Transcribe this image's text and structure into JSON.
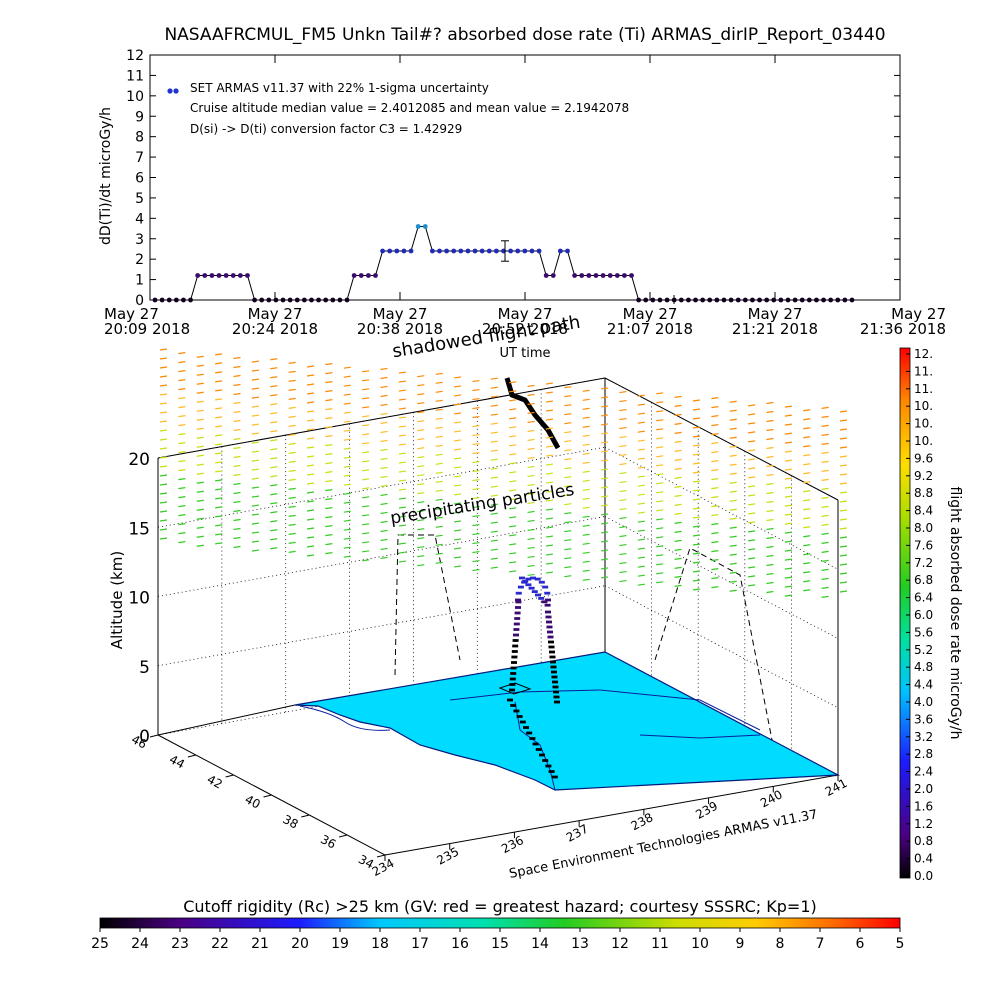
{
  "title": "NASAAFRCMUL_FM5 Unkn Tail#? absorbed dose rate (Ti) ARMAS_dirIP_Report_03440",
  "chart_data": [
    {
      "type": "line",
      "ylabel": "dD(Ti)/dt microGy/h",
      "xlabel": "UT time",
      "ylim": [
        0,
        12
      ],
      "yticks": [
        "0",
        "1",
        "2",
        "3",
        "4",
        "5",
        "6",
        "7",
        "8",
        "9",
        "10",
        "11",
        "12"
      ],
      "xticks": [
        {
          "date": "May 27",
          "time": "20:09 2018"
        },
        {
          "date": "May 27",
          "time": "20:24 2018"
        },
        {
          "date": "May 27",
          "time": "20:38 2018"
        },
        {
          "date": "May 27",
          "time": "20:52 2018"
        },
        {
          "date": "May 27",
          "time": "21:07 2018"
        },
        {
          "date": "May 27",
          "time": "21:21 2018"
        },
        {
          "date": "May 27",
          "time": "21:36 2018"
        }
      ],
      "legend": {
        "series_label": "SET ARMAS v11.37 with 22% 1-sigma uncertainty",
        "note1": "Cruise altitude median value = 2.4012085 and mean value = 2.1942078",
        "note2": "D(si) -> D(ti) conversion factor C3 = 1.42929"
      },
      "series": [
        {
          "name": "SET ARMAS v11.37 with 22% 1-sigma uncertainty",
          "values": [
            0,
            0,
            0,
            0,
            0,
            0,
            1.2,
            1.2,
            1.2,
            1.2,
            1.2,
            1.2,
            1.2,
            1.2,
            0,
            0,
            0,
            0,
            0,
            0,
            0,
            0,
            0,
            0,
            0,
            0,
            0,
            0,
            1.2,
            1.2,
            1.2,
            1.2,
            2.4,
            2.4,
            2.4,
            2.4,
            2.4,
            3.6,
            3.6,
            2.4,
            2.4,
            2.4,
            2.4,
            2.4,
            2.4,
            2.4,
            2.4,
            2.4,
            2.4,
            2.4,
            2.4,
            2.4,
            2.4,
            2.4,
            2.4,
            1.2,
            1.2,
            2.4,
            2.4,
            1.2,
            1.2,
            1.2,
            1.2,
            1.2,
            1.2,
            1.2,
            1.2,
            1.2,
            0,
            0,
            0,
            0,
            0,
            0,
            0,
            0,
            0,
            0,
            0,
            0,
            0,
            0,
            0,
            0,
            0,
            0,
            0,
            0,
            0,
            0,
            0,
            0,
            0,
            0,
            0,
            0,
            0,
            0,
            0
          ]
        }
      ],
      "error_bar": {
        "value": 2.4,
        "low": 1.9,
        "high": 2.9
      }
    },
    {
      "type": "scatter",
      "zlabel": "Altitude (km)",
      "zticks": [
        "0",
        "5",
        "10",
        "15",
        "20"
      ],
      "lat_ticks": [
        "34",
        "36",
        "38",
        "40",
        "42",
        "44",
        "46"
      ],
      "lon_ticks": [
        "234",
        "235",
        "236",
        "237",
        "238",
        "239",
        "240",
        "241"
      ],
      "annotations": [
        "shadowed flight path",
        "precipitating particles"
      ],
      "footer": "Space Environment Technologies ARMAS v11.37",
      "ground_color": "#00dcff"
    },
    {
      "type": "heatmap",
      "name": "colorbar-dose",
      "label": "flight absorbed dose rate microGy/h",
      "ticks": [
        "12.",
        "11.",
        "11.",
        "10.",
        "10.",
        "10.",
        "9.6",
        "9.2",
        "8.8",
        "8.4",
        "8.0",
        "7.6",
        "7.2",
        "6.8",
        "6.4",
        "6.0",
        "5.6",
        "5.2",
        "4.8",
        "4.4",
        "4.0",
        "3.6",
        "3.2",
        "2.8",
        "2.4",
        "2.0",
        "1.6",
        "1.2",
        "0.8",
        "0.4",
        "0.0"
      ]
    },
    {
      "type": "heatmap",
      "name": "colorbar-rigidity",
      "label": "Cutoff rigidity (Rc) >25 km (GV: red = greatest hazard; courtesy SSSRC; Kp=1)",
      "ticks": [
        "25",
        "24",
        "23",
        "22",
        "21",
        "20",
        "19",
        "18",
        "17",
        "16",
        "15",
        "14",
        "13",
        "12",
        "11",
        "10",
        "9",
        "8",
        "7",
        "6",
        "5"
      ]
    }
  ]
}
